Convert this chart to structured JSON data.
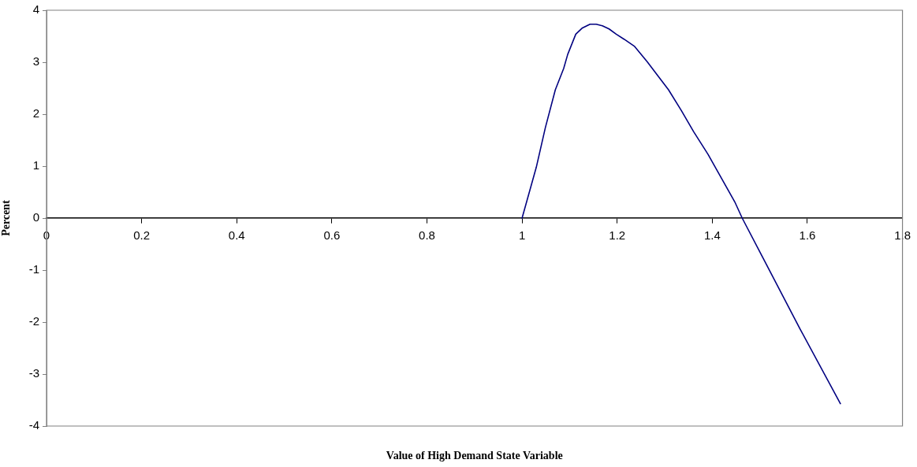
{
  "chart_data": {
    "type": "line",
    "xlabel": "Value of High Demand State Variable",
    "ylabel": "Percent",
    "x": [
      1.0,
      1.03,
      1.049,
      1.07,
      1.0875,
      1.096,
      1.113,
      1.127,
      1.143,
      1.156,
      1.169,
      1.183,
      1.198,
      1.215,
      1.236,
      1.263,
      1.308,
      1.335,
      1.361,
      1.391,
      1.4475,
      1.463,
      1.507,
      1.5845,
      1.6695
    ],
    "series": [
      {
        "color": "#000080",
        "values": [
          0,
          0.98,
          1.74,
          2.47,
          2.88,
          3.15,
          3.54,
          3.66,
          3.73,
          3.73,
          3.7,
          3.64,
          3.54,
          3.44,
          3.31,
          3.01,
          2.47,
          2.07,
          1.66,
          1.23,
          0.31,
          0,
          -0.77,
          -2.13,
          -3.57
        ]
      }
    ],
    "xlim": [
      0,
      1.8
    ],
    "xticks": [
      0,
      0.2,
      0.4,
      0.6,
      0.8,
      1,
      1.2,
      1.4,
      1.6,
      1.8
    ],
    "ylim": [
      -4,
      4
    ],
    "yticks": [
      -4,
      -3,
      -2,
      -1,
      0,
      1,
      2,
      3,
      4
    ],
    "grid": false,
    "legend": false,
    "marker": "none",
    "line_style": "solid"
  }
}
